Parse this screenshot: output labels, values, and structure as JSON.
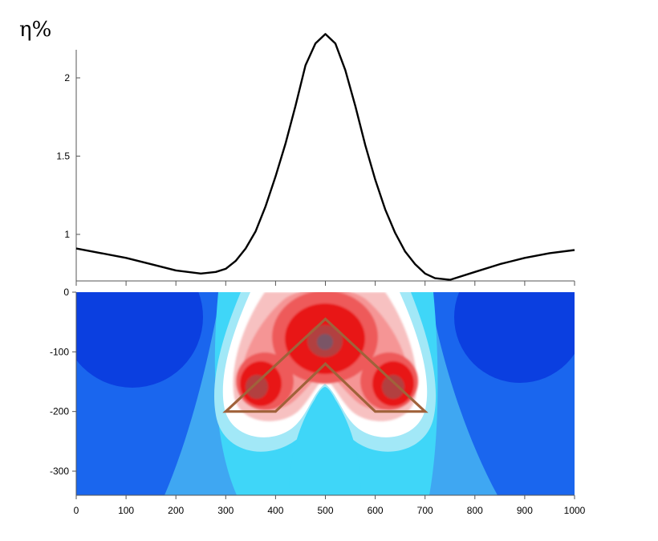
{
  "chart_data": [
    {
      "type": "line",
      "ylabel": "η%",
      "xlim": [
        0,
        1000
      ],
      "ylim": [
        0.7,
        2.2
      ],
      "y_ticks": [
        "1",
        "1.5",
        "2"
      ],
      "series": [
        {
          "color": "#000000",
          "x": [
            0,
            50,
            100,
            150,
            200,
            250,
            280,
            300,
            320,
            340,
            360,
            380,
            400,
            420,
            440,
            460,
            480,
            500,
            520,
            540,
            560,
            580,
            600,
            620,
            640,
            660,
            680,
            700,
            720,
            750,
            800,
            850,
            900,
            950,
            1000
          ],
          "y": [
            0.91,
            0.88,
            0.85,
            0.81,
            0.77,
            0.75,
            0.76,
            0.78,
            0.83,
            0.91,
            1.02,
            1.18,
            1.37,
            1.58,
            1.82,
            2.08,
            2.22,
            2.28,
            2.22,
            2.05,
            1.82,
            1.57,
            1.35,
            1.16,
            1.01,
            0.89,
            0.81,
            0.75,
            0.72,
            0.71,
            0.76,
            0.81,
            0.85,
            0.88,
            0.9
          ]
        }
      ]
    },
    {
      "type": "heatmap",
      "x_ticks": [
        "0",
        "100",
        "200",
        "300",
        "400",
        "500",
        "600",
        "700",
        "800",
        "900",
        "1000"
      ],
      "y_ticks": [
        "0",
        "-100",
        "-200",
        "-300"
      ],
      "xlim": [
        0,
        1000
      ],
      "ylim": [
        -340,
        0
      ],
      "colormap": [
        "#0b3fe0",
        "#1a66ee",
        "#3fa7f2",
        "#3fd6f8",
        "#a2e8f7",
        "#ffffff",
        "#f7c1c1",
        "#f59595",
        "#ee5a5a",
        "#e81818",
        "#b24040",
        "#7a5566"
      ],
      "anomaly_peaks": [
        {
          "x": 500,
          "y": -80
        },
        {
          "x": 360,
          "y": -160
        },
        {
          "x": 640,
          "y": -160
        }
      ],
      "outline": {
        "color": "#a0623a",
        "points": [
          [
            300,
            -200
          ],
          [
            400,
            -200
          ],
          [
            500,
            -120
          ],
          [
            600,
            -200
          ],
          [
            700,
            -200
          ],
          [
            500,
            -45
          ]
        ]
      }
    }
  ]
}
